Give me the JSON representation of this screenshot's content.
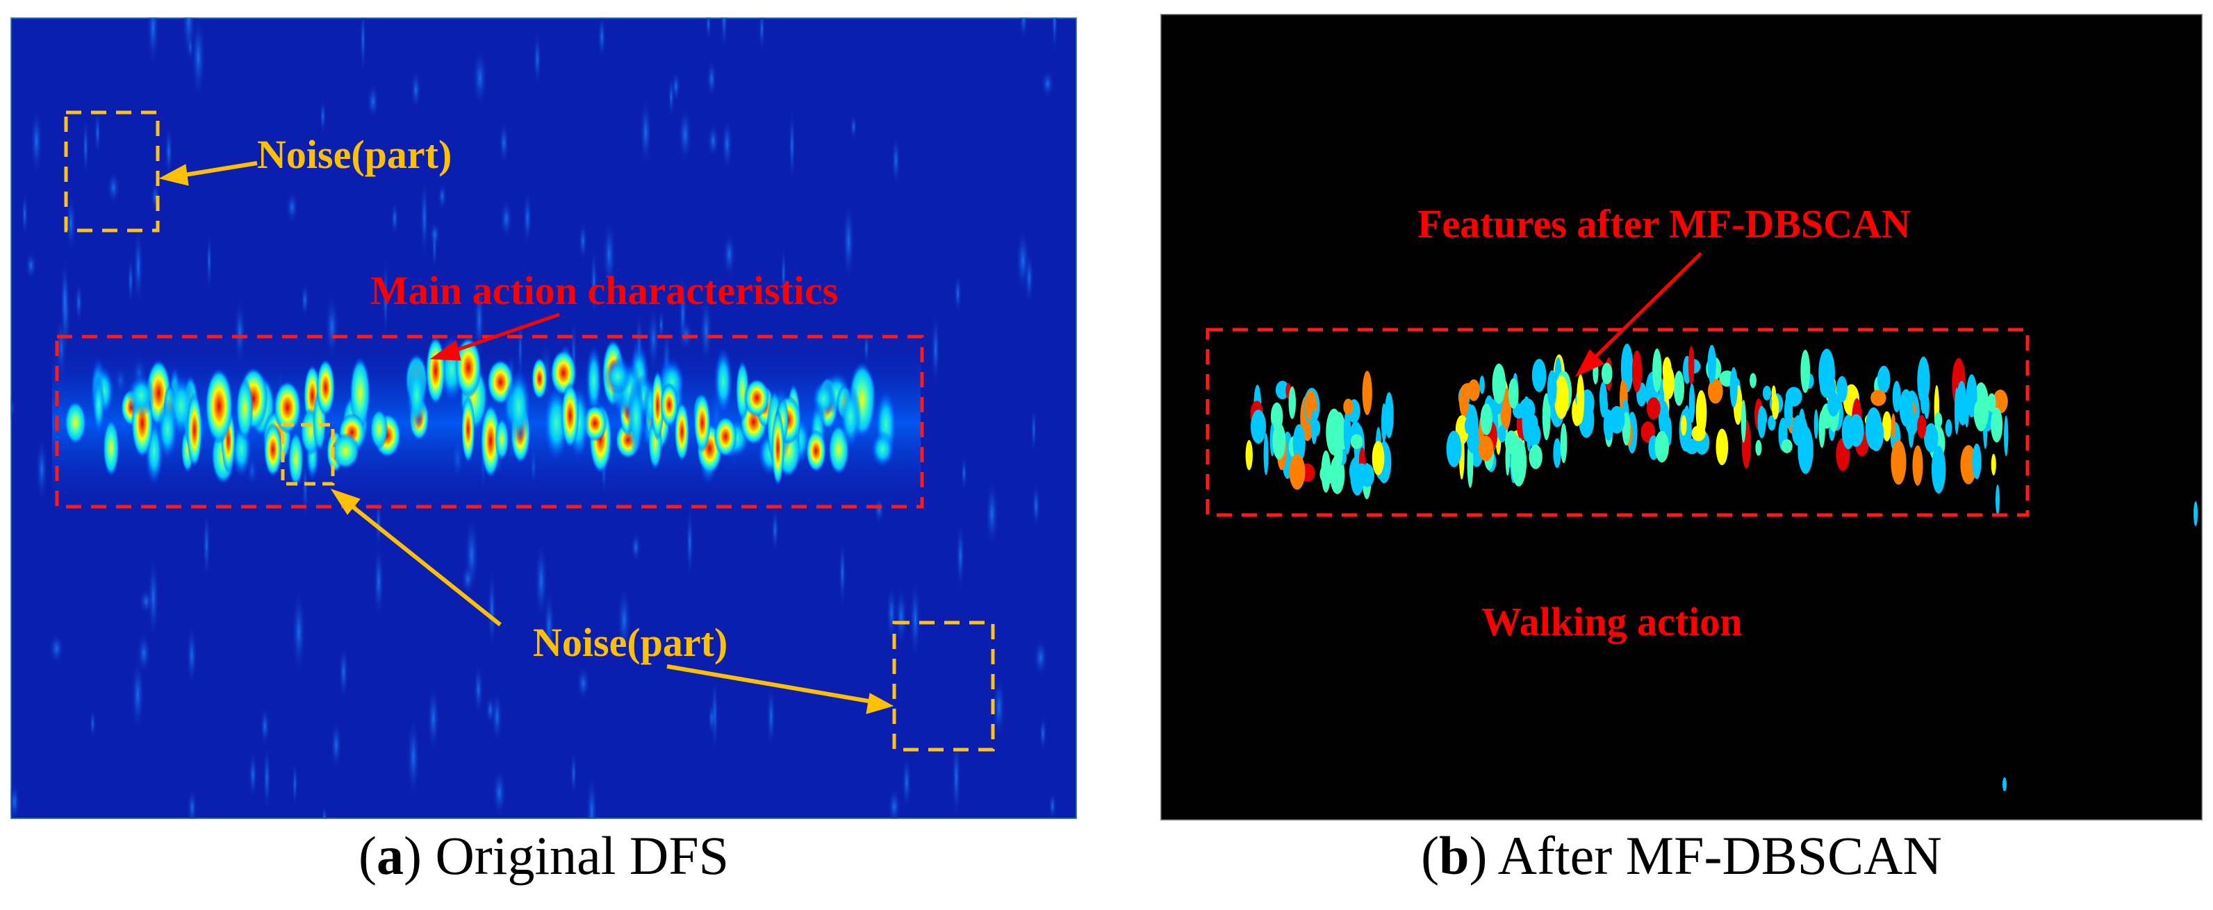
{
  "panel_a": {
    "caption_letter": "a",
    "caption_text": "Original DFS",
    "annotations": {
      "noise_top": "Noise(part)",
      "main_action": "Main action characteristics",
      "noise_bottom": "Noise(part)"
    },
    "colors": {
      "background": "#0a1fb0",
      "dashed_red": "#ff1a1a",
      "dashed_yellow": "#ffc21a",
      "text_red": "#ff0000",
      "text_yellow": "#ffc000"
    }
  },
  "panel_b": {
    "caption_letter": "b",
    "caption_text": "After MF-DBSCAN",
    "annotations": {
      "features": "Features after MF-DBSCAN",
      "walking": "Walking action"
    },
    "colors": {
      "background": "#000000",
      "dashed_red": "#ff1a1a",
      "text_red": "#ff0000"
    }
  },
  "colormap": [
    "#00008f",
    "#0030ff",
    "#00c8ff",
    "#40ffbf",
    "#ffff00",
    "#ff8000",
    "#e00000"
  ]
}
